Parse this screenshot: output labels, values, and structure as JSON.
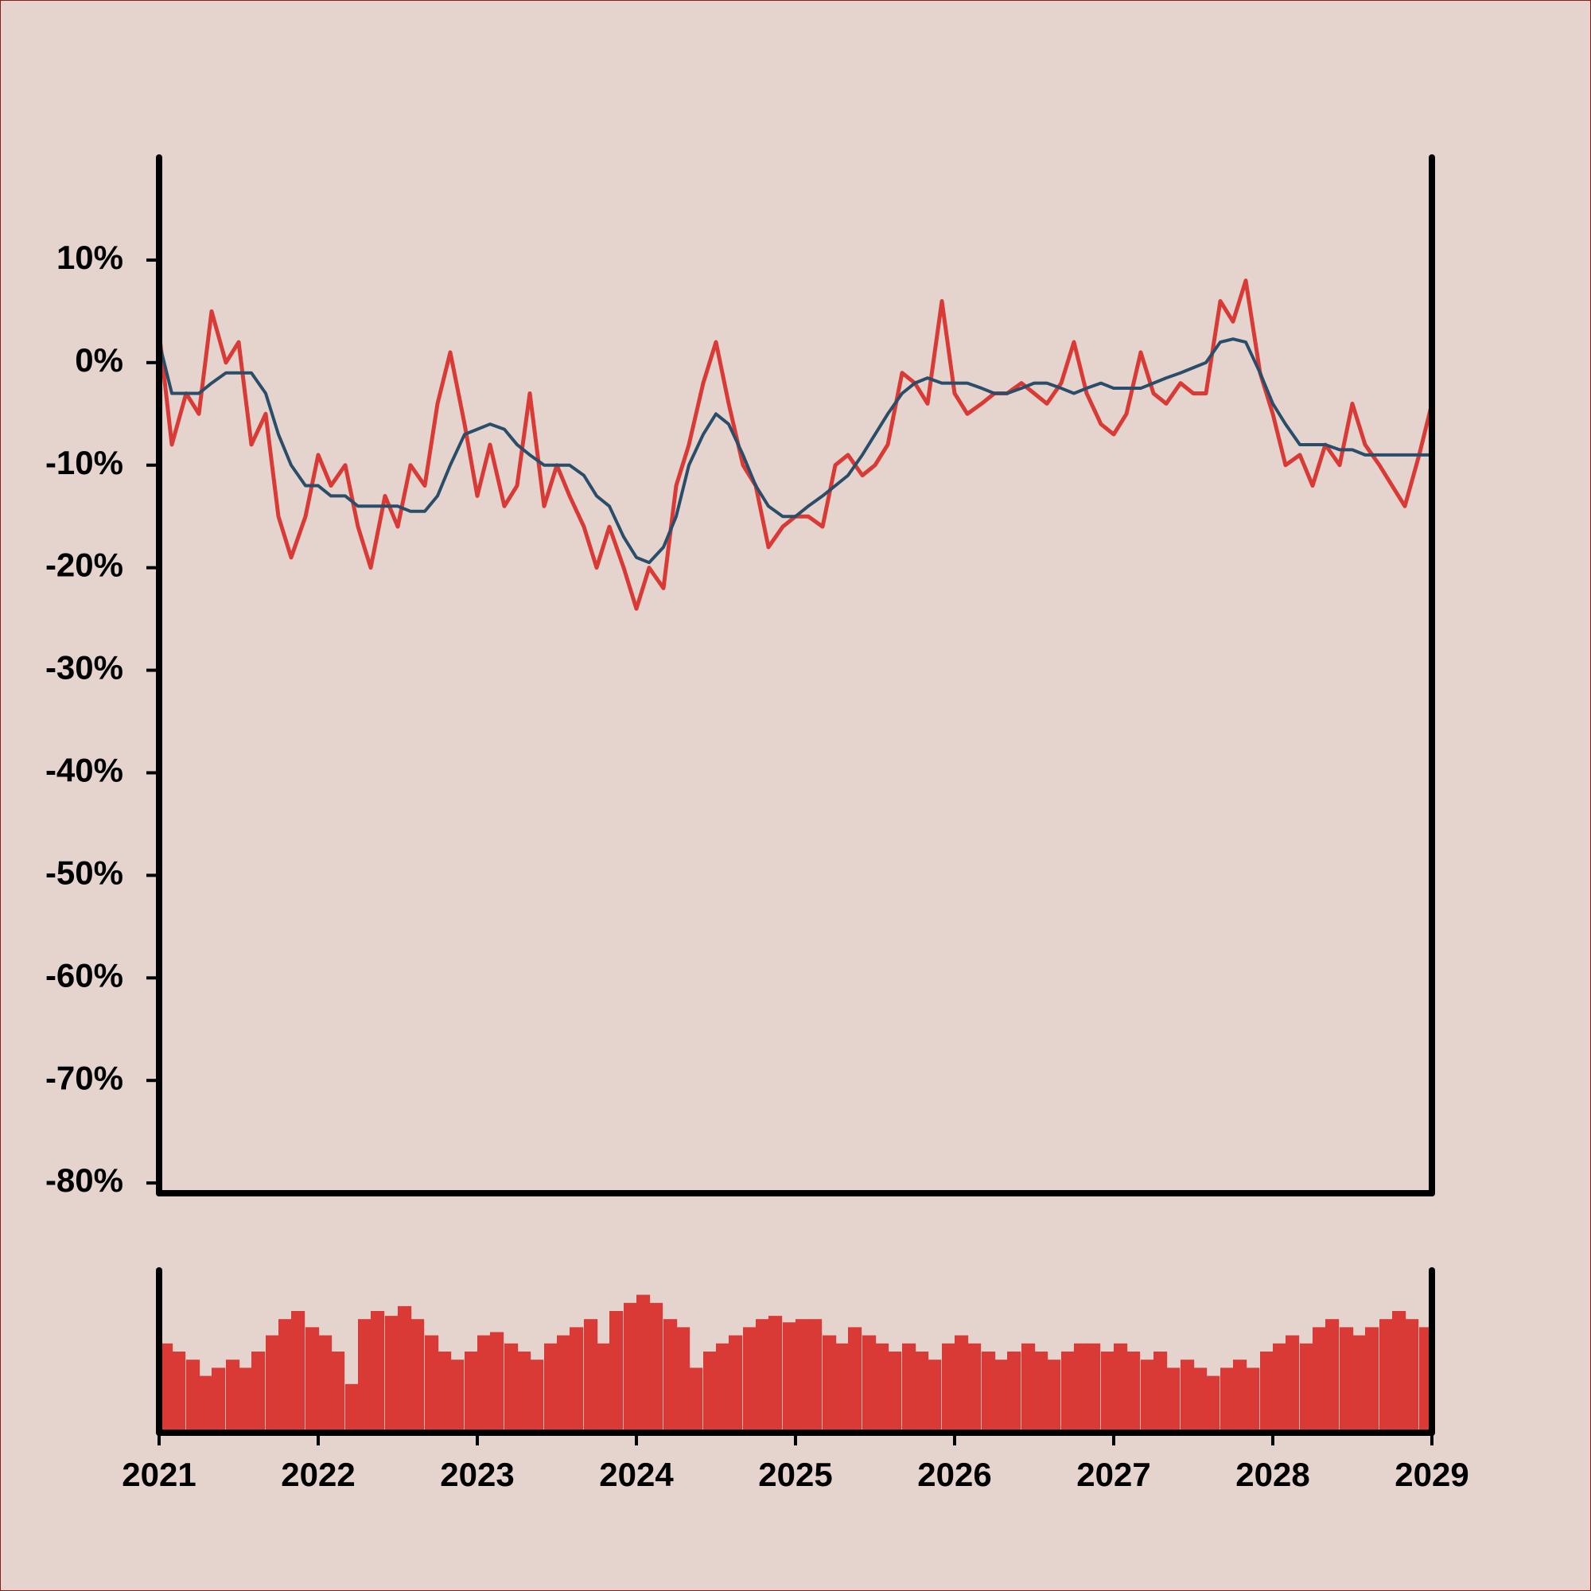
{
  "chart_data": [
    {
      "type": "line",
      "x": [
        2021,
        2021.08,
        2021.17,
        2021.25,
        2021.33,
        2021.42,
        2021.5,
        2021.58,
        2021.67,
        2021.75,
        2021.83,
        2021.92,
        2022,
        2022.08,
        2022.17,
        2022.25,
        2022.33,
        2022.42,
        2022.5,
        2022.58,
        2022.67,
        2022.75,
        2022.83,
        2022.92,
        2023,
        2023.08,
        2023.17,
        2023.25,
        2023.33,
        2023.42,
        2023.5,
        2023.58,
        2023.67,
        2023.75,
        2023.83,
        2023.92,
        2024,
        2024.08,
        2024.17,
        2024.25,
        2024.33,
        2024.42,
        2024.5,
        2024.58,
        2024.67,
        2024.75,
        2024.83,
        2024.92,
        2025,
        2025.08,
        2025.17,
        2025.25,
        2025.33,
        2025.42,
        2025.5,
        2025.58,
        2025.67,
        2025.75,
        2025.83,
        2025.92,
        2026,
        2026.08,
        2026.17,
        2026.25,
        2026.33,
        2026.42,
        2026.5,
        2026.58,
        2026.67,
        2026.75,
        2026.83,
        2026.92,
        2027,
        2027.08,
        2027.17,
        2027.25,
        2027.33,
        2027.42,
        2027.5,
        2027.58,
        2027.67,
        2027.75,
        2027.83,
        2027.92,
        2028,
        2028.08,
        2028.17,
        2028.25,
        2028.33,
        2028.42,
        2028.5,
        2028.58,
        2028.67,
        2028.75,
        2028.83,
        2028.92,
        2029
      ],
      "series": [
        {
          "color": "#d93a35",
          "values": [
            3,
            -8,
            -3,
            -5,
            5,
            0,
            2,
            -8,
            -5,
            -15,
            -19,
            -15,
            -9,
            -12,
            -10,
            -16,
            -20,
            -13,
            -16,
            -10,
            -12,
            -4,
            1,
            -6,
            -13,
            -8,
            -14,
            -12,
            -3,
            -14,
            -10,
            -13,
            -16,
            -20,
            -16,
            -20,
            -24,
            -20,
            -22,
            -12,
            -8,
            -2,
            2,
            -4,
            -10,
            -12,
            -18,
            -16,
            -15,
            -15,
            -16,
            -10,
            -9,
            -11,
            -10,
            -8,
            -1,
            -2,
            -4,
            6,
            -3,
            -5,
            -4,
            -3,
            -3,
            -2,
            -3,
            -4,
            -2,
            2,
            -3,
            -6,
            -7,
            -5,
            1,
            -3,
            -4,
            -2,
            -3,
            -3,
            6,
            4,
            8,
            -1,
            -5,
            -10,
            -9,
            -12,
            -8,
            -10,
            -4,
            -8,
            -10,
            -12,
            -14,
            -9,
            -4
          ]
        },
        {
          "color": "#2a4d69",
          "values": [
            2,
            -3,
            -3,
            -3,
            -2,
            -1,
            -1,
            -1,
            -3,
            -7,
            -10,
            -12,
            -12,
            -13,
            -13,
            -14,
            -14,
            -14,
            -14,
            -14.5,
            -14.5,
            -13,
            -10,
            -7,
            -6.5,
            -6,
            -6.5,
            -8,
            -9,
            -10,
            -10,
            -10,
            -11,
            -13,
            -14,
            -17,
            -19,
            -19.5,
            -18,
            -15,
            -10,
            -7,
            -5,
            -6,
            -9,
            -12,
            -14,
            -15,
            -15,
            -14,
            -13,
            -12,
            -11,
            -9,
            -7,
            -5,
            -3,
            -2,
            -1.5,
            -2,
            -2,
            -2,
            -2.5,
            -3,
            -3,
            -2.5,
            -2,
            -2,
            -2.5,
            -3,
            -2.5,
            -2,
            -2.5,
            -2.5,
            -2.5,
            -2,
            -1.5,
            -1,
            -0.5,
            0,
            2,
            2.3,
            2,
            -1,
            -4,
            -6,
            -8,
            -8,
            -8,
            -8.5,
            -8.5,
            -9,
            -9,
            -9,
            -9,
            -9,
            -9
          ]
        }
      ],
      "xlim": [
        2021,
        2029
      ],
      "ylim": [
        -81,
        20
      ],
      "yticks": [
        {
          "value": 10,
          "label": "10%"
        },
        {
          "value": 0,
          "label": "0%"
        },
        {
          "value": -10,
          "label": "-10%"
        },
        {
          "value": -20,
          "label": "-20%"
        },
        {
          "value": -30,
          "label": "-30%"
        },
        {
          "value": -40,
          "label": "-40%"
        },
        {
          "value": -50,
          "label": "-50%"
        },
        {
          "value": -60,
          "label": "-60%"
        },
        {
          "value": -70,
          "label": "-70%"
        },
        {
          "value": -80,
          "label": "-80%"
        }
      ]
    },
    {
      "type": "bar",
      "x": [
        2021,
        2021.08,
        2021.17,
        2021.25,
        2021.33,
        2021.42,
        2021.5,
        2021.58,
        2021.67,
        2021.75,
        2021.83,
        2021.92,
        2022,
        2022.08,
        2022.17,
        2022.25,
        2022.33,
        2022.42,
        2022.5,
        2022.58,
        2022.67,
        2022.75,
        2022.83,
        2022.92,
        2023,
        2023.08,
        2023.17,
        2023.25,
        2023.33,
        2023.42,
        2023.5,
        2023.58,
        2023.67,
        2023.75,
        2023.83,
        2023.92,
        2024,
        2024.08,
        2024.17,
        2024.25,
        2024.33,
        2024.42,
        2024.5,
        2024.58,
        2024.67,
        2024.75,
        2024.83,
        2024.92,
        2025,
        2025.08,
        2025.17,
        2025.25,
        2025.33,
        2025.42,
        2025.5,
        2025.58,
        2025.67,
        2025.75,
        2025.83,
        2025.92,
        2026,
        2026.08,
        2026.17,
        2026.25,
        2026.33,
        2026.42,
        2026.5,
        2026.58,
        2026.67,
        2026.75,
        2026.83,
        2026.92,
        2027,
        2027.08,
        2027.17,
        2027.25,
        2027.33,
        2027.42,
        2027.5,
        2027.58,
        2027.67,
        2027.75,
        2027.83,
        2027.92,
        2028,
        2028.08,
        2028.17,
        2028.25,
        2028.33,
        2028.42,
        2028.5,
        2028.58,
        2028.67,
        2028.75,
        2028.83,
        2028.92
      ],
      "values": [
        55,
        50,
        45,
        35,
        40,
        45,
        40,
        50,
        60,
        70,
        75,
        65,
        60,
        50,
        30,
        70,
        75,
        72,
        78,
        70,
        60,
        50,
        45,
        50,
        60,
        62,
        55,
        50,
        45,
        55,
        60,
        65,
        70,
        55,
        75,
        80,
        85,
        80,
        70,
        65,
        40,
        50,
        55,
        60,
        65,
        70,
        72,
        68,
        70,
        70,
        60,
        55,
        65,
        60,
        55,
        50,
        55,
        50,
        45,
        55,
        60,
        55,
        50,
        45,
        50,
        55,
        50,
        45,
        50,
        55,
        55,
        50,
        55,
        50,
        45,
        50,
        40,
        45,
        40,
        35,
        40,
        45,
        40,
        50,
        55,
        60,
        55,
        65,
        70,
        65,
        60,
        65,
        70,
        75,
        70,
        65
      ],
      "color": "#d93a35",
      "xlim": [
        2021,
        2029
      ],
      "ylim": [
        0,
        100
      ],
      "xticks": [
        2021,
        2022,
        2023,
        2024,
        2025,
        2026,
        2027,
        2028,
        2029
      ]
    }
  ]
}
